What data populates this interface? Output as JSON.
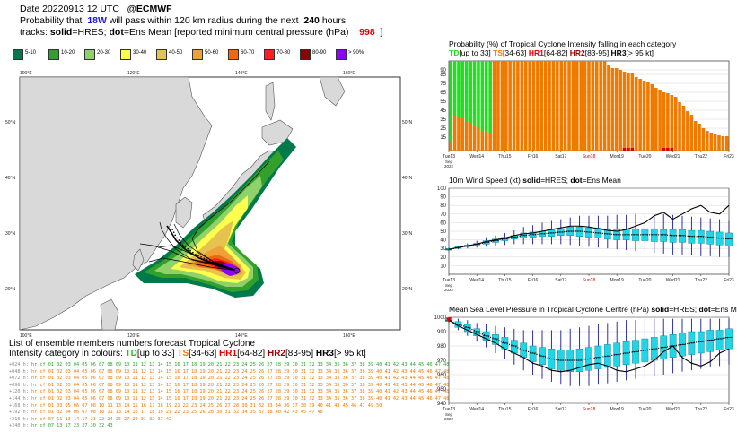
{
  "header": {
    "date_line": "Date 20220913 12 UTC",
    "source": "@ECMWF",
    "prob_prefix": "Probability that",
    "storm": "18W",
    "prob_mid": "will pass within 120 km radius during the next",
    "hours": "240",
    "hours_unit": "hours",
    "tracks_prefix": "tracks:",
    "solid": "solid",
    "solid_eq": "=HRES;",
    "dot": "dot",
    "dot_eq": "=Ens Mean [reported minimum central pressure (hPa)",
    "reported_pressure": "998",
    "close_bracket": "]"
  },
  "legend": [
    {
      "label": "5-10",
      "color": "#007a4a"
    },
    {
      "label": "10-20",
      "color": "#33a02c"
    },
    {
      "label": "20-30",
      "color": "#8fd16a"
    },
    {
      "label": "30-40",
      "color": "#ffff4d"
    },
    {
      "label": "40-50",
      "color": "#e6c34d"
    },
    {
      "label": "50-60",
      "color": "#f0a038"
    },
    {
      "label": "60-70",
      "color": "#ee6a10"
    },
    {
      "label": "70-80",
      "color": "#ff1e1e"
    },
    {
      "label": "80-90",
      "color": "#8b0000"
    },
    {
      "label": "> 90%",
      "color": "#8f00ff"
    }
  ],
  "map": {
    "top_lons": [
      "100°E",
      "120°E",
      "140°E",
      "160°E"
    ],
    "bottom_lons": [
      "100°E",
      "120°E",
      "140°E",
      "160°E"
    ],
    "left_lats": [
      "50°N",
      "40°N",
      "30°N",
      "20°N"
    ],
    "right_lats": [
      "50°N",
      "40°N",
      "30°N",
      "20°N"
    ]
  },
  "ensemble": {
    "title": "List of ensemble members numbers forecast Tropical Cyclone",
    "subtitle_prefix": "Intensity category in colours:",
    "cats": [
      {
        "name": "TD",
        "range": "[up to 33]",
        "color": "#1fbf1f"
      },
      {
        "name": "TS",
        "range": "[34-63]",
        "color": "#ee7a00"
      },
      {
        "name": "HR1",
        "range": "[64-82]",
        "color": "#e00000"
      },
      {
        "name": "HR2",
        "range": "[83-95]",
        "color": "#9b0000"
      },
      {
        "name": "HR3",
        "range": "[> 95 kt]",
        "color": "#000000"
      }
    ],
    "rows": [
      {
        "lead": "+024 h:",
        "text": "hr cf 01 02 03 04 05 06 07 08 09 10 11 12 13 14 15 16 17 18 19 20 21 22 23 24 25 26 27 28 29 30 31 32 33 34 35 36 37 38 39 40 41 42 43 44 45 46 47 48 49 50",
        "color": "#2aa52a"
      },
      {
        "lead": "+048 h:",
        "text": "hr cf 01 02 03 04 05 06 07 08 09 10 11 12 13 14 15 16 17 18 19 20 21 22 23 24 25 26 27 28 29 30 31 32 33 34 35 36 37 38 39 40 41 42 43 44 45 46 47 48 49 50",
        "color": "#ee7a00"
      },
      {
        "lead": "+072 h:",
        "text": "hr cf 01 02 03 04 05 06 07 08 09 10 11 12 13 14 15 16 17 18 19 20 21 22 23 24 25 26 27 28 29 30 31 32 33 34 35 36 37 38 39 40 41 42 43 44 45 46 47 48 49 50",
        "color": "#ee7a00"
      },
      {
        "lead": "+096 h:",
        "text": "hr cf 01 02 03 04 05 06 07 08 09 10 11 12 13 14 15 16 17 18 19 20 21 22 23 24 25 26 27 28 29 30 31 32 33 34 35 36 37 38 39 40 41 42 43 44 45 46 47 48 49 50",
        "color": "#ee7a00"
      },
      {
        "lead": "+120 h:",
        "text": "hr cf 01 02 03 04 05 06 07 08 09 10 11 12 13 14 15 16 17 18 19 20 21 22 23 24 25 26 27 28 29 30 31 32 33 34 35 36 37 38 39 40 41 42 43 44 45 46 47 48 49 50",
        "color": "#ee7a00"
      },
      {
        "lead": "+144 h:",
        "text": "hr cf 01 02 03 04 05 06 07 08 09 10 11 12 13 14 15 16 17 18 19 20 21 22 23 24 25 26 27 28 29 30 31 32 33 34 35 36 37 38 39 40 41 42 43 44 45 46 47 48 49 50",
        "color": "#ee7a00"
      },
      {
        "lead": "+168 h:",
        "text": "hr cf 01    03    05 06 07 08    10 11    13 14 15 16 17 18 19    21 22 23 24 25 26 27 28    30 31 32 33 34    36 37 38 39 40 41    43    45 46 47    49 50",
        "color": "#ee7a00"
      },
      {
        "lead": "+192 h:",
        "text": "hr cf 01 02    04    06 07 08    10 11    13 14    16 17 18 19    21 22 23    25 26    28    30 31 32    34 35    37 38    40    42 43    45    47 48",
        "color": "#ee7a00"
      },
      {
        "lead": "+216 h:",
        "text": "hr cf             07          11    13 14          17          21 22    24 25    27    29    31 32             37             42",
        "color": "#ee7a00"
      },
      {
        "lead": "+240 h:",
        "text": "hr cf             07             13             17                   23          27       30    32                                 43",
        "color": "#2aa52a"
      }
    ]
  },
  "chart_data": [
    {
      "type": "bar",
      "title": "Probability (%) of Tropical Cyclone Intensity falling in each category",
      "categories_legend": [
        {
          "name": "TD",
          "range": "[up to 33]",
          "color": "#22dd22"
        },
        {
          "name": "TS",
          "range": "[34-63]",
          "color": "#ee7a00"
        },
        {
          "name": "HR1",
          "range": "[64-82]",
          "color": "#e00000"
        },
        {
          "name": "HR2",
          "range": "[83-95]",
          "color": "#9b0000"
        },
        {
          "name": "HR3",
          "range": "[> 95 kt]",
          "color": "#000000"
        }
      ],
      "x_labels": [
        "Tue13",
        "Wed14",
        "Thu15",
        "Fri16",
        "Sat17",
        "Sun18",
        "Mon19",
        "Tue20",
        "Wed21",
        "Thu22",
        "Fri23"
      ],
      "x_sublabel": [
        "Sep",
        "2022"
      ],
      "ylim": [
        0,
        100
      ],
      "yticks": [
        15,
        25,
        35,
        45,
        55,
        65,
        75,
        85,
        90
      ],
      "series": {
        "TS": [
          10,
          40,
          38,
          36,
          33,
          30,
          28,
          25,
          22,
          22,
          18,
          100,
          100,
          100,
          100,
          100,
          100,
          100,
          100,
          100,
          100,
          100,
          100,
          100,
          100,
          100,
          100,
          100,
          100,
          100,
          100,
          100,
          100,
          100,
          100,
          100,
          100,
          100,
          100,
          100,
          96,
          92,
          92,
          90,
          88,
          86,
          86,
          82,
          80,
          78,
          76,
          74,
          70,
          68,
          65,
          64,
          62,
          60,
          54,
          50,
          44,
          40,
          33,
          30,
          25,
          22,
          20,
          18,
          17,
          16,
          16
        ],
        "HR1": [
          0,
          0,
          0,
          0,
          0,
          0,
          0,
          0,
          0,
          0,
          0,
          0,
          0,
          0,
          0,
          0,
          0,
          0,
          0,
          0,
          0,
          0,
          0,
          0,
          0,
          0,
          0,
          0,
          0,
          0,
          0,
          0,
          0,
          0,
          0,
          0,
          0,
          0,
          0,
          0,
          0,
          0,
          0,
          0,
          0,
          0,
          0,
          0,
          0,
          0,
          0,
          0,
          0,
          0,
          0,
          0,
          0,
          0,
          0,
          0,
          0,
          0,
          0,
          0,
          0,
          0,
          0,
          0,
          0,
          0,
          0
        ],
        "TD": [
          90,
          60,
          62,
          64,
          67,
          70,
          72,
          75,
          78,
          78,
          82,
          0,
          0,
          0,
          0,
          0,
          0,
          0,
          0,
          0,
          0,
          0,
          0,
          0,
          0,
          0,
          0,
          0,
          0,
          0,
          0,
          0,
          0,
          0,
          0,
          0,
          0,
          0,
          0,
          0,
          0,
          0,
          0,
          0,
          0,
          0,
          0,
          0,
          0,
          0,
          0,
          0,
          0,
          0,
          0,
          0,
          0,
          0,
          0,
          0,
          0,
          0,
          0,
          0,
          0,
          0,
          0,
          0,
          0,
          0,
          0
        ]
      },
      "xlabel": "",
      "ylabel": ""
    },
    {
      "type": "line",
      "title": "10m Wind Speed (kt)",
      "title_suffix_solid": "solid",
      "title_suffix_eq1": "=HRES;",
      "title_suffix_dot": "dot",
      "title_suffix_eq2": "=Ens Mean",
      "x_labels": [
        "Tue13",
        "Wed14",
        "Thu15",
        "Fri16",
        "Sat17",
        "Sun18",
        "Mon19",
        "Tue20",
        "Wed21",
        "Thu22",
        "Fri23"
      ],
      "ylim": [
        0,
        100
      ],
      "yticks": [
        10,
        20,
        30,
        40,
        50,
        60,
        70,
        80,
        90,
        100
      ],
      "hres": [
        29,
        31,
        33,
        35,
        38,
        40,
        42,
        45,
        47,
        48,
        50,
        52,
        54,
        56,
        56,
        55,
        53,
        51,
        50,
        52,
        56,
        60,
        68,
        72,
        64,
        70,
        76,
        80,
        72,
        70,
        80
      ],
      "ens_mean": [
        29,
        31,
        33,
        35,
        37,
        39,
        41,
        43,
        45,
        46,
        47,
        48,
        49,
        50,
        50,
        49,
        48,
        47,
        46,
        46,
        46,
        46,
        46,
        46,
        45,
        45,
        44,
        44,
        43,
        42,
        41
      ],
      "box_median": [
        29,
        31,
        33,
        35,
        37,
        39,
        41,
        43,
        45,
        46,
        47,
        48,
        49,
        50,
        50,
        49,
        48,
        47,
        46,
        46,
        46,
        46,
        46,
        46,
        45,
        45,
        44,
        44,
        43,
        42,
        41
      ],
      "box_q1": [
        28,
        30,
        32,
        34,
        35,
        37,
        39,
        41,
        42,
        43,
        44,
        44,
        45,
        45,
        44,
        43,
        42,
        41,
        40,
        40,
        39,
        39,
        38,
        38,
        37,
        37,
        36,
        36,
        35,
        34,
        33
      ],
      "box_q3": [
        30,
        32,
        34,
        36,
        39,
        41,
        43,
        45,
        48,
        49,
        50,
        52,
        53,
        55,
        55,
        54,
        54,
        53,
        53,
        53,
        53,
        53,
        53,
        52,
        52,
        52,
        51,
        51,
        50,
        49,
        48
      ],
      "whisk_lo": [
        27,
        29,
        30,
        31,
        32,
        33,
        34,
        35,
        35,
        35,
        35,
        35,
        35,
        34,
        33,
        32,
        31,
        30,
        29,
        28,
        27,
        26,
        25,
        24,
        23,
        22,
        22,
        21,
        21,
        20,
        20
      ],
      "whisk_hi": [
        31,
        33,
        36,
        39,
        43,
        45,
        48,
        51,
        55,
        57,
        60,
        62,
        64,
        66,
        68,
        68,
        68,
        68,
        69,
        69,
        70,
        70,
        70,
        70,
        69,
        68,
        67,
        66,
        65,
        64,
        62
      ]
    },
    {
      "type": "line",
      "title": "Mean Sea Level Pressure in Tropical Cyclone Centre (hPa)",
      "title_suffix_solid": "solid",
      "title_suffix_eq1": "=HRES;",
      "title_suffix_dot": "dot",
      "title_suffix_eq2": "=Ens Mean",
      "x_labels": [
        "Tue13",
        "Wed14",
        "Thu15",
        "Fri16",
        "Sat17",
        "Sun18",
        "Mon19",
        "Tue20",
        "Wed21",
        "Thu22",
        "Fri23"
      ],
      "ylim": [
        940,
        1000
      ],
      "yticks": [
        940,
        950,
        960,
        970,
        980,
        990,
        1000
      ],
      "reported": 998,
      "hres": [
        998,
        994,
        991,
        988,
        985,
        982,
        978,
        975,
        972,
        968,
        966,
        963,
        962,
        963,
        965,
        967,
        968,
        966,
        963,
        962,
        964,
        966,
        970,
        976,
        980,
        972,
        968,
        966,
        969,
        975,
        978
      ],
      "ens_mean": [
        998,
        995,
        993,
        990,
        987,
        985,
        982,
        980,
        977,
        975,
        973,
        971,
        970,
        970,
        970,
        971,
        972,
        973,
        974,
        975,
        976,
        977,
        978,
        979,
        980,
        981,
        982,
        983,
        984,
        985,
        986
      ],
      "box_median": [
        998,
        995,
        993,
        990,
        987,
        985,
        982,
        980,
        977,
        975,
        973,
        971,
        970,
        970,
        970,
        971,
        972,
        973,
        974,
        975,
        976,
        977,
        978,
        979,
        980,
        981,
        982,
        983,
        984,
        985,
        986
      ],
      "box_q1": [
        997,
        993,
        990,
        987,
        984,
        981,
        978,
        975,
        972,
        969,
        967,
        964,
        963,
        962,
        962,
        963,
        964,
        965,
        966,
        967,
        968,
        969,
        970,
        971,
        972,
        973,
        974,
        975,
        976,
        977,
        978
      ],
      "box_q3": [
        999,
        997,
        995,
        992,
        990,
        988,
        986,
        984,
        982,
        980,
        979,
        978,
        977,
        977,
        978,
        979,
        980,
        981,
        982,
        983,
        984,
        985,
        986,
        987,
        988,
        989,
        990,
        990,
        991,
        991,
        992
      ],
      "whisk_lo": [
        996,
        991,
        987,
        983,
        979,
        975,
        971,
        967,
        963,
        960,
        957,
        955,
        953,
        952,
        952,
        952,
        953,
        954,
        955,
        956,
        957,
        958,
        959,
        960,
        961,
        962,
        963,
        964,
        965,
        966,
        967
      ],
      "whisk_hi": [
        1000,
        999,
        998,
        996,
        995,
        994,
        993,
        992,
        991,
        991,
        991,
        991,
        991,
        992,
        993,
        994,
        995,
        996,
        997,
        998,
        998,
        999,
        999,
        999,
        999,
        999,
        999,
        999,
        999,
        999,
        999
      ]
    }
  ]
}
